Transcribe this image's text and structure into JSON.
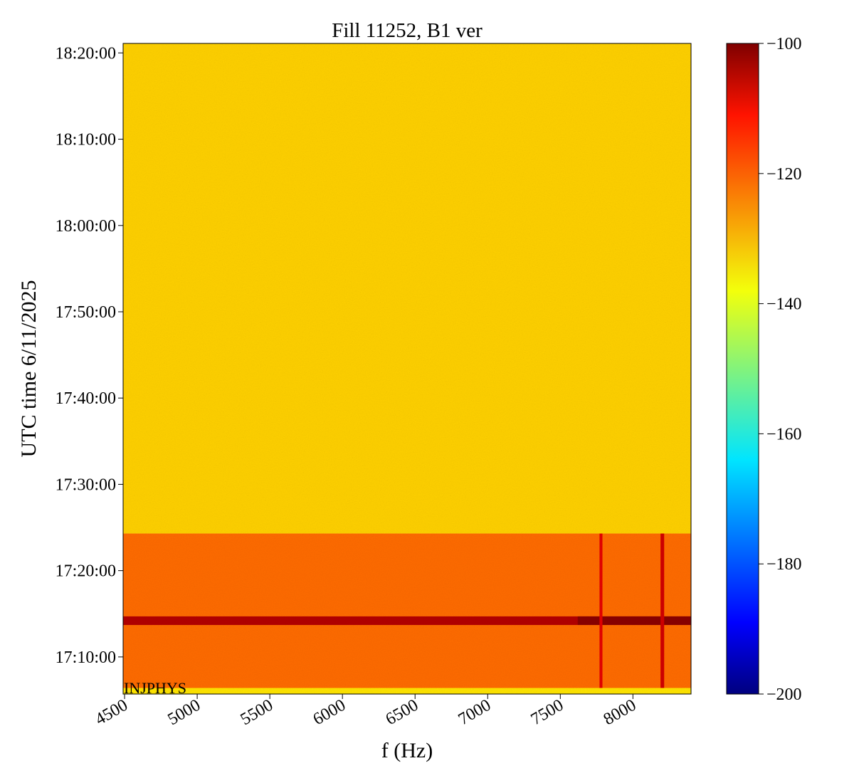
{
  "chart_data": {
    "type": "heatmap",
    "title": "Fill 11252, B1 ver",
    "x_label": "f (Hz)",
    "y_label": "UTC time 6/11/2025",
    "annotation": "INJPHYS",
    "xlim": [
      4490,
      8400
    ],
    "xticks": [
      4500,
      5000,
      5500,
      6000,
      6500,
      7000,
      7500,
      8000
    ],
    "ylim": [
      1025.7,
      1101.1
    ],
    "yticks": [
      {
        "value": 1030,
        "label": "17:10:00"
      },
      {
        "value": 1040,
        "label": "17:20:00"
      },
      {
        "value": 1050,
        "label": "17:30:00"
      },
      {
        "value": 1060,
        "label": "17:40:00"
      },
      {
        "value": 1070,
        "label": "17:50:00"
      },
      {
        "value": 1080,
        "label": "18:00:00"
      },
      {
        "value": 1090,
        "label": "18:10:00"
      },
      {
        "value": 1100,
        "label": "18:20:00"
      }
    ],
    "regions": [
      {
        "x": [
          4490,
          8400
        ],
        "y": [
          1044.3,
          1101.1
        ],
        "value": -133
      },
      {
        "x": [
          4490,
          8400
        ],
        "y": [
          1026.4,
          1044.3
        ],
        "value": -123
      },
      {
        "x": [
          4490,
          8400
        ],
        "y": [
          1025.7,
          1026.4
        ],
        "value": -135
      },
      {
        "x": [
          4490,
          8400
        ],
        "y": [
          1033.7,
          1034.7
        ],
        "value": -105
      },
      {
        "x": [
          7620,
          8400
        ],
        "y": [
          1033.7,
          1034.7
        ],
        "value": -101
      },
      {
        "x": [
          8190,
          8215
        ],
        "y": [
          1026.4,
          1044.3
        ],
        "value": -108
      },
      {
        "x": [
          7770,
          7790
        ],
        "y": [
          1026.4,
          1044.3
        ],
        "value": -110
      }
    ],
    "colorbar": {
      "lim": [
        -200,
        -100
      ],
      "ticks": [
        -200,
        -180,
        -160,
        -140,
        -120,
        -100
      ]
    }
  }
}
